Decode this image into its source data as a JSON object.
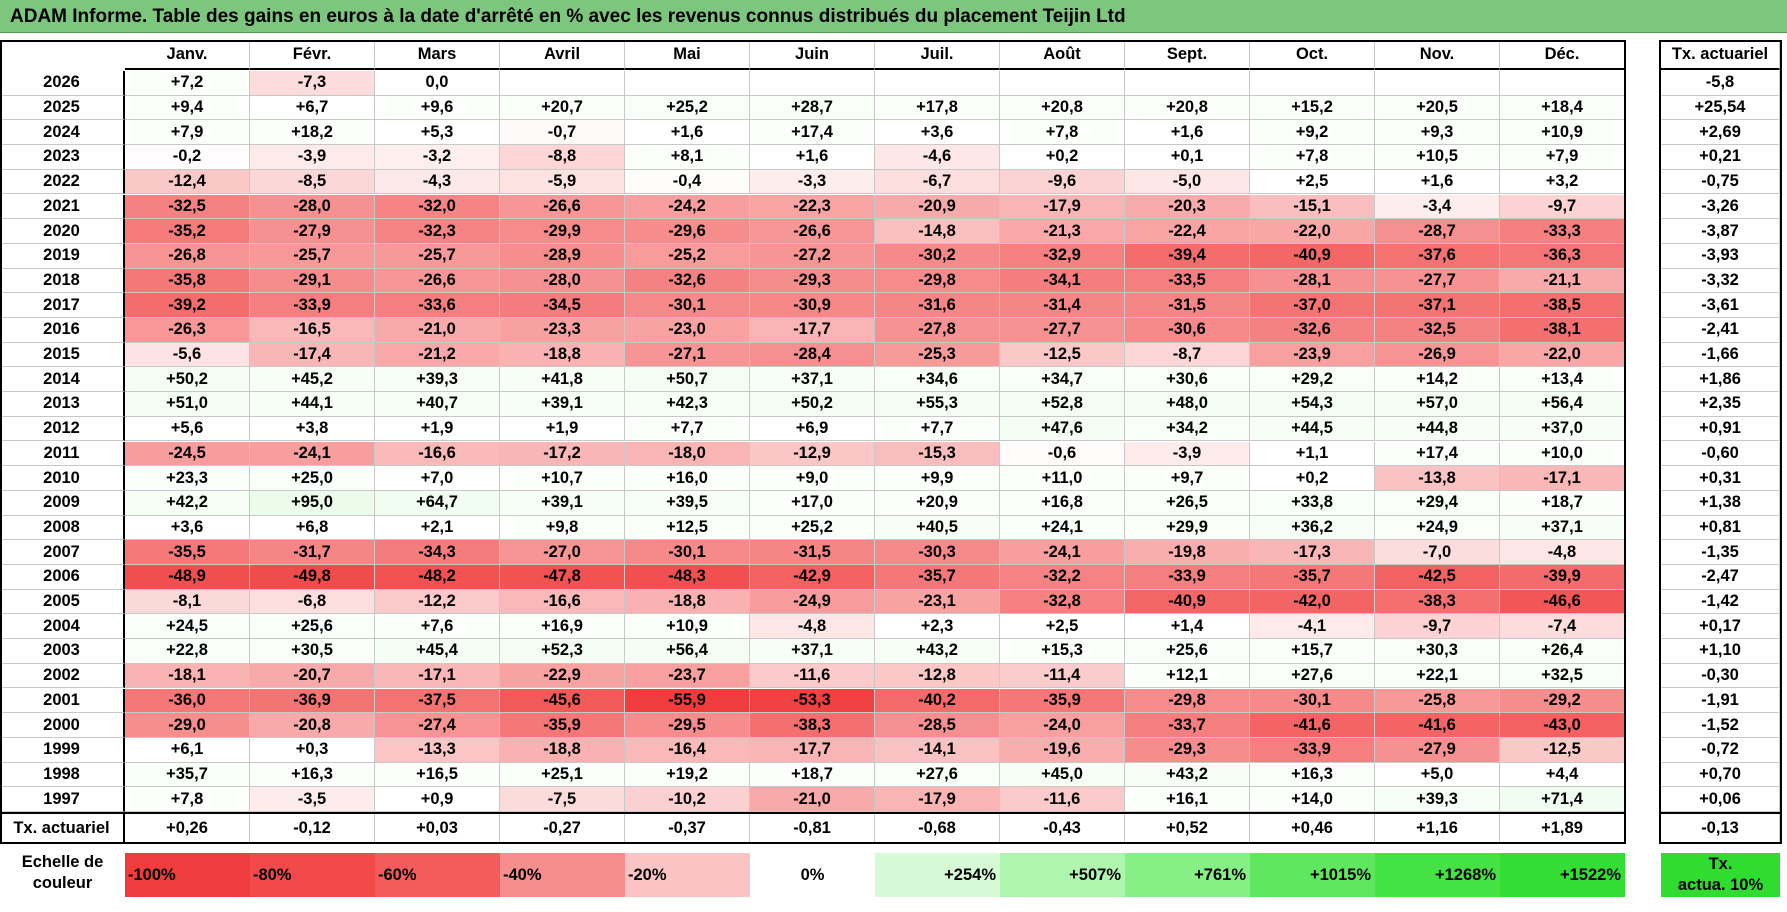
{
  "title": "ADAM Informe. Table des gains en euros à la date d'arrêté en % avec les revenus connus distribués du placement Teijin Ltd",
  "months": [
    "Janv.",
    "Févr.",
    "Mars",
    "Avril",
    "Mai",
    "Juin",
    "Juil.",
    "Août",
    "Sept.",
    "Oct.",
    "Nov.",
    "Déc."
  ],
  "rate_header": "Tx. actuariel",
  "rows": [
    {
      "year": "2026",
      "values": [
        "+7,2",
        "-7,3",
        "0,0",
        "",
        "",
        "",
        "",
        "",
        "",
        "",
        "",
        ""
      ],
      "rate": "-5,8"
    },
    {
      "year": "2025",
      "values": [
        "+9,4",
        "+6,7",
        "+9,6",
        "+20,7",
        "+25,2",
        "+28,7",
        "+17,8",
        "+20,8",
        "+20,8",
        "+15,2",
        "+20,5",
        "+18,4"
      ],
      "rate": "+25,54"
    },
    {
      "year": "2024",
      "values": [
        "+7,9",
        "+18,2",
        "+5,3",
        "-0,7",
        "+1,6",
        "+17,4",
        "+3,6",
        "+7,8",
        "+1,6",
        "+9,2",
        "+9,3",
        "+10,9"
      ],
      "rate": "+2,69"
    },
    {
      "year": "2023",
      "values": [
        "-0,2",
        "-3,9",
        "-3,2",
        "-8,8",
        "+8,1",
        "+1,6",
        "-4,6",
        "+0,2",
        "+0,1",
        "+7,8",
        "+10,5",
        "+7,9"
      ],
      "rate": "+0,21"
    },
    {
      "year": "2022",
      "values": [
        "-12,4",
        "-8,5",
        "-4,3",
        "-5,9",
        "-0,4",
        "-3,3",
        "-6,7",
        "-9,6",
        "-5,0",
        "+2,5",
        "+1,6",
        "+3,2"
      ],
      "rate": "-0,75"
    },
    {
      "year": "2021",
      "values": [
        "-32,5",
        "-28,0",
        "-32,0",
        "-26,6",
        "-24,2",
        "-22,3",
        "-20,9",
        "-17,9",
        "-20,3",
        "-15,1",
        "-3,4",
        "-9,7"
      ],
      "rate": "-3,26"
    },
    {
      "year": "2020",
      "values": [
        "-35,2",
        "-27,9",
        "-32,3",
        "-29,9",
        "-29,6",
        "-26,6",
        "-14,8",
        "-21,3",
        "-22,4",
        "-22,0",
        "-28,7",
        "-33,3"
      ],
      "rate": "-3,87"
    },
    {
      "year": "2019",
      "values": [
        "-26,8",
        "-25,7",
        "-25,7",
        "-28,9",
        "-25,2",
        "-27,2",
        "-30,2",
        "-32,9",
        "-39,4",
        "-40,9",
        "-37,6",
        "-36,3"
      ],
      "rate": "-3,93"
    },
    {
      "year": "2018",
      "values": [
        "-35,8",
        "-29,1",
        "-26,6",
        "-28,0",
        "-32,6",
        "-29,3",
        "-29,8",
        "-34,1",
        "-33,5",
        "-28,1",
        "-27,7",
        "-21,1"
      ],
      "rate": "-3,32"
    },
    {
      "year": "2017",
      "values": [
        "-39,2",
        "-33,9",
        "-33,6",
        "-34,5",
        "-30,1",
        "-30,9",
        "-31,6",
        "-31,4",
        "-31,5",
        "-37,0",
        "-37,1",
        "-38,5"
      ],
      "rate": "-3,61"
    },
    {
      "year": "2016",
      "values": [
        "-26,3",
        "-16,5",
        "-21,0",
        "-23,3",
        "-23,0",
        "-17,7",
        "-27,8",
        "-27,7",
        "-30,6",
        "-32,6",
        "-32,5",
        "-38,1"
      ],
      "rate": "-2,41"
    },
    {
      "year": "2015",
      "values": [
        "-5,6",
        "-17,4",
        "-21,2",
        "-18,8",
        "-27,1",
        "-28,4",
        "-25,3",
        "-12,5",
        "-8,7",
        "-23,9",
        "-26,9",
        "-22,0"
      ],
      "rate": "-1,66"
    },
    {
      "year": "2014",
      "values": [
        "+50,2",
        "+45,2",
        "+39,3",
        "+41,8",
        "+50,7",
        "+37,1",
        "+34,6",
        "+34,7",
        "+30,6",
        "+29,2",
        "+14,2",
        "+13,4"
      ],
      "rate": "+1,86"
    },
    {
      "year": "2013",
      "values": [
        "+51,0",
        "+44,1",
        "+40,7",
        "+39,1",
        "+42,3",
        "+50,2",
        "+55,3",
        "+52,8",
        "+48,0",
        "+54,3",
        "+57,0",
        "+56,4"
      ],
      "rate": "+2,35"
    },
    {
      "year": "2012",
      "values": [
        "+5,6",
        "+3,8",
        "+1,9",
        "+1,9",
        "+7,7",
        "+6,9",
        "+7,7",
        "+47,6",
        "+34,2",
        "+44,5",
        "+44,8",
        "+37,0"
      ],
      "rate": "+0,91"
    },
    {
      "year": "2011",
      "values": [
        "-24,5",
        "-24,1",
        "-16,6",
        "-17,2",
        "-18,0",
        "-12,9",
        "-15,3",
        "-0,6",
        "-3,9",
        "+1,1",
        "+17,4",
        "+10,0"
      ],
      "rate": "-0,60"
    },
    {
      "year": "2010",
      "values": [
        "+23,3",
        "+25,0",
        "+7,0",
        "+10,7",
        "+16,0",
        "+9,0",
        "+9,9",
        "+11,0",
        "+9,7",
        "+0,2",
        "-13,8",
        "-17,1"
      ],
      "rate": "+0,31"
    },
    {
      "year": "2009",
      "values": [
        "+42,2",
        "+95,0",
        "+64,7",
        "+39,1",
        "+39,5",
        "+17,0",
        "+20,9",
        "+16,8",
        "+26,5",
        "+33,8",
        "+29,4",
        "+18,7"
      ],
      "rate": "+1,38"
    },
    {
      "year": "2008",
      "values": [
        "+3,6",
        "+6,8",
        "+2,1",
        "+9,8",
        "+12,5",
        "+25,2",
        "+40,5",
        "+24,1",
        "+29,9",
        "+36,2",
        "+24,9",
        "+37,1"
      ],
      "rate": "+0,81"
    },
    {
      "year": "2007",
      "values": [
        "-35,5",
        "-31,7",
        "-34,3",
        "-27,0",
        "-30,1",
        "-31,5",
        "-30,3",
        "-24,1",
        "-19,8",
        "-17,3",
        "-7,0",
        "-4,8"
      ],
      "rate": "-1,35"
    },
    {
      "year": "2006",
      "values": [
        "-48,9",
        "-49,8",
        "-48,2",
        "-47,8",
        "-48,3",
        "-42,9",
        "-35,7",
        "-32,2",
        "-33,9",
        "-35,7",
        "-42,5",
        "-39,9"
      ],
      "rate": "-2,47"
    },
    {
      "year": "2005",
      "values": [
        "-8,1",
        "-6,8",
        "-12,2",
        "-16,6",
        "-18,8",
        "-24,9",
        "-23,1",
        "-32,8",
        "-40,9",
        "-42,0",
        "-38,3",
        "-46,6"
      ],
      "rate": "-1,42"
    },
    {
      "year": "2004",
      "values": [
        "+24,5",
        "+25,6",
        "+7,6",
        "+16,9",
        "+10,9",
        "-4,8",
        "+2,3",
        "+2,5",
        "+1,4",
        "-4,1",
        "-9,7",
        "-7,4"
      ],
      "rate": "+0,17"
    },
    {
      "year": "2003",
      "values": [
        "+22,8",
        "+30,5",
        "+45,4",
        "+52,3",
        "+56,4",
        "+37,1",
        "+43,2",
        "+15,3",
        "+25,6",
        "+15,7",
        "+30,3",
        "+26,4"
      ],
      "rate": "+1,10"
    },
    {
      "year": "2002",
      "values": [
        "-18,1",
        "-20,7",
        "-17,1",
        "-22,9",
        "-23,7",
        "-11,6",
        "-12,8",
        "-11,4",
        "+12,1",
        "+27,6",
        "+22,1",
        "+32,5"
      ],
      "rate": "-0,30"
    },
    {
      "year": "2001",
      "values": [
        "-36,0",
        "-36,9",
        "-37,5",
        "-45,6",
        "-55,9",
        "-53,3",
        "-40,2",
        "-35,9",
        "-29,8",
        "-30,1",
        "-25,8",
        "-29,2"
      ],
      "rate": "-1,91"
    },
    {
      "year": "2000",
      "values": [
        "-29,0",
        "-20,8",
        "-27,4",
        "-35,9",
        "-29,5",
        "-38,3",
        "-28,5",
        "-24,0",
        "-33,7",
        "-41,6",
        "-41,6",
        "-43,0"
      ],
      "rate": "-1,52"
    },
    {
      "year": "1999",
      "values": [
        "+6,1",
        "+0,3",
        "-13,3",
        "-18,8",
        "-16,4",
        "-17,7",
        "-14,1",
        "-19,6",
        "-29,3",
        "-33,9",
        "-27,9",
        "-12,5"
      ],
      "rate": "-0,72"
    },
    {
      "year": "1998",
      "values": [
        "+35,7",
        "+16,3",
        "+16,5",
        "+25,1",
        "+19,2",
        "+18,7",
        "+27,6",
        "+45,0",
        "+43,2",
        "+16,3",
        "+5,0",
        "+4,4"
      ],
      "rate": "+0,70"
    },
    {
      "year": "1997",
      "values": [
        "+7,8",
        "-3,5",
        "+0,9",
        "-7,5",
        "-10,2",
        "-21,0",
        "-17,9",
        "-11,6",
        "+16,1",
        "+14,0",
        "+39,3",
        "+71,4"
      ],
      "rate": "+0,06"
    }
  ],
  "footer_row": {
    "label": "Tx. actuariel",
    "values": [
      "+0,26",
      "-0,12",
      "+0,03",
      "-0,27",
      "-0,37",
      "-0,81",
      "-0,68",
      "-0,43",
      "+0,52",
      "+0,46",
      "+1,16",
      "+1,89"
    ],
    "rate": "-0,13"
  },
  "legend": {
    "label_line1": "Echelle de",
    "label_line2": "couleur",
    "items": [
      {
        "text": "-100%",
        "color": "#f03c3c",
        "kind": "neg"
      },
      {
        "text": "-80%",
        "color": "#f24a4a",
        "kind": "neg"
      },
      {
        "text": "-60%",
        "color": "#f45c5c",
        "kind": "neg"
      },
      {
        "text": "-40%",
        "color": "#f78e8e",
        "kind": "neg"
      },
      {
        "text": "-20%",
        "color": "#fbc4c4",
        "kind": "neg"
      },
      {
        "text": "0%",
        "color": "#ffffff",
        "kind": "zero"
      },
      {
        "text": "+254%",
        "color": "#d6f9d6",
        "kind": "pos"
      },
      {
        "text": "+507%",
        "color": "#aef5ae",
        "kind": "pos"
      },
      {
        "text": "+761%",
        "color": "#86ef86",
        "kind": "pos"
      },
      {
        "text": "+1015%",
        "color": "#5fe85f",
        "kind": "pos"
      },
      {
        "text": "+1268%",
        "color": "#45e245",
        "kind": "pos"
      },
      {
        "text": "+1522%",
        "color": "#33dd33",
        "kind": "pos"
      }
    ],
    "last_line1": "Tx.",
    "last_line2": "actua. 10%",
    "last_color": "#2fdc2f"
  },
  "colors": {
    "title_bg": "#7dc67d",
    "neg_max": "#f03c3c",
    "pos_max": "#33dd33"
  }
}
